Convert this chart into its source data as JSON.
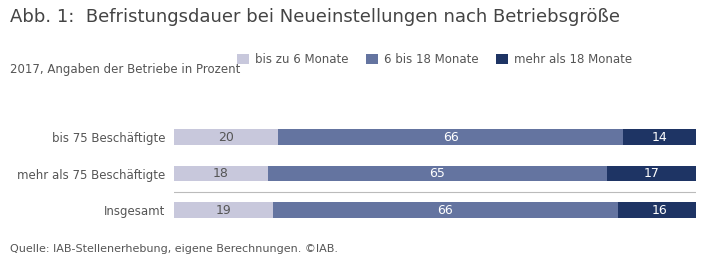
{
  "title": "Abb. 1:  Befristungsdauer bei Neueinstellungen nach Betriebsgröße",
  "subtitle": "2017, Angaben der Betriebe in Prozent",
  "source": "Quelle: IAB-Stellenerhebung, eigene Berechnungen. ©IAB.",
  "categories": [
    "bis 75 Beschäftigte",
    "mehr als 75 Beschäftigte",
    "Insgesamt"
  ],
  "legend_labels": [
    "bis zu 6 Monate",
    "6 bis 18 Monate",
    "mehr als 18 Monate"
  ],
  "values": [
    [
      20,
      66,
      14
    ],
    [
      18,
      65,
      17
    ],
    [
      19,
      66,
      16
    ]
  ],
  "colors": [
    "#c8c8dc",
    "#6474a0",
    "#1e3464"
  ],
  "text_color": "#555555",
  "title_color": "#444444",
  "bar_text_color_dark": "#ffffff",
  "bar_text_color_light": "#555555",
  "background_color": "#ffffff",
  "separator_color": "#bbbbbb",
  "bar_height": 0.42,
  "title_fontsize": 13.0,
  "subtitle_fontsize": 8.5,
  "legend_fontsize": 8.5,
  "label_fontsize": 8.5,
  "bar_label_fontsize": 9.0,
  "source_fontsize": 8.0,
  "figsize": [
    7.1,
    2.62
  ],
  "dpi": 100
}
